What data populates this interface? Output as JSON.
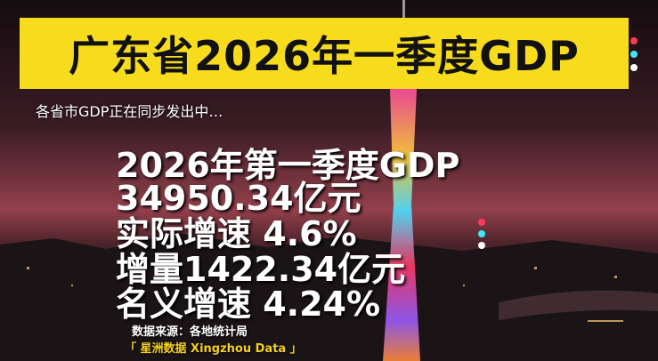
{
  "header": {
    "title": "广东省2026年一季度GDP",
    "subtitle": "各省市GDP正在同步发出中…"
  },
  "content": {
    "lines": [
      "2026年第一季度GDP",
      "34950.34亿元",
      "实际增速 4.6%",
      "增量1422.34亿元",
      "名义增速 4.24%"
    ]
  },
  "footer": {
    "source": "数据来源：各地统计局",
    "brand": "「 星洲数据 Xingzhou Data 」"
  }
}
